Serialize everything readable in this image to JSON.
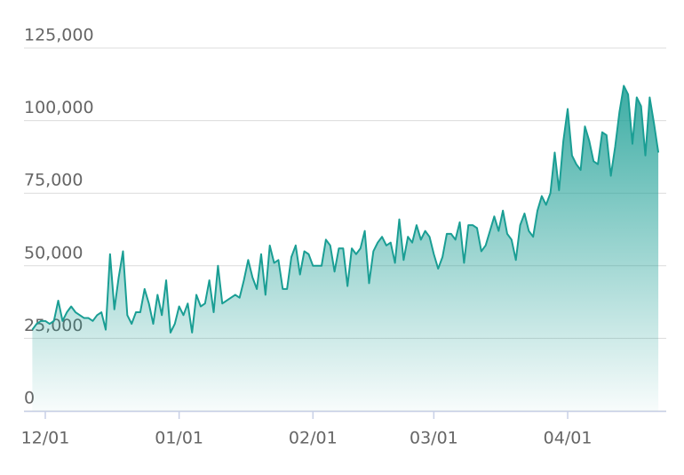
{
  "chart_data": {
    "type": "area",
    "x": [
      "11/28",
      "11/29",
      "11/30",
      "12/01",
      "12/02",
      "12/03",
      "12/04",
      "12/05",
      "12/06",
      "12/07",
      "12/08",
      "12/09",
      "12/10",
      "12/11",
      "12/12",
      "12/13",
      "12/14",
      "12/15",
      "12/16",
      "12/17",
      "12/18",
      "12/19",
      "12/20",
      "12/21",
      "12/22",
      "12/23",
      "12/24",
      "12/25",
      "12/26",
      "12/27",
      "12/28",
      "12/29",
      "12/30",
      "12/31",
      "01/01",
      "01/02",
      "01/03",
      "01/04",
      "01/05",
      "01/06",
      "01/07",
      "01/08",
      "01/09",
      "01/10",
      "01/11",
      "01/12",
      "01/13",
      "01/14",
      "01/15",
      "01/16",
      "01/17",
      "01/18",
      "01/19",
      "01/20",
      "01/21",
      "01/22",
      "01/23",
      "01/24",
      "01/25",
      "01/26",
      "01/27",
      "01/28",
      "01/29",
      "01/30",
      "01/31",
      "02/01",
      "02/02",
      "02/03",
      "02/04",
      "02/05",
      "02/06",
      "02/07",
      "02/08",
      "02/09",
      "02/10",
      "02/11",
      "02/12",
      "02/13",
      "02/14",
      "02/15",
      "02/16",
      "02/17",
      "02/18",
      "02/19",
      "02/20",
      "02/21",
      "02/22",
      "02/23",
      "02/24",
      "02/25",
      "02/26",
      "02/27",
      "02/28",
      "03/01",
      "03/02",
      "03/03",
      "03/04",
      "03/05",
      "03/06",
      "03/07",
      "03/08",
      "03/09",
      "03/10",
      "03/11",
      "03/12",
      "03/13",
      "03/14",
      "03/15",
      "03/16",
      "03/17",
      "03/18",
      "03/19",
      "03/20",
      "03/21",
      "03/22",
      "03/23",
      "03/24",
      "03/25",
      "03/26",
      "03/27",
      "03/28",
      "03/29",
      "03/30",
      "03/31",
      "04/01",
      "04/02",
      "04/03",
      "04/04",
      "04/05",
      "04/06",
      "04/07",
      "04/08",
      "04/09",
      "04/10",
      "04/11",
      "04/12",
      "04/13",
      "04/14",
      "04/15",
      "04/16",
      "04/17",
      "04/18",
      "04/19",
      "04/20",
      "04/21",
      "04/22"
    ],
    "values": [
      28000,
      30000,
      31000,
      31000,
      30000,
      31000,
      38000,
      31000,
      34000,
      36000,
      34000,
      33000,
      32000,
      32000,
      31000,
      33000,
      34000,
      28000,
      54000,
      35000,
      46000,
      55000,
      33000,
      30000,
      34000,
      34000,
      42000,
      37000,
      30000,
      40000,
      33000,
      45000,
      27000,
      30000,
      36000,
      33000,
      37000,
      27000,
      40000,
      36000,
      37000,
      45000,
      34000,
      50000,
      37000,
      38000,
      39000,
      40000,
      39000,
      45000,
      52000,
      46000,
      42000,
      54000,
      40000,
      57000,
      51000,
      52000,
      42000,
      42000,
      53000,
      57000,
      47000,
      55000,
      54000,
      50000,
      50000,
      50000,
      59000,
      57000,
      48000,
      56000,
      56000,
      43000,
      56000,
      54000,
      56000,
      62000,
      44000,
      55000,
      58000,
      60000,
      57000,
      58000,
      51000,
      66000,
      52000,
      60000,
      58000,
      64000,
      59000,
      62000,
      60000,
      54000,
      49000,
      53000,
      61000,
      61000,
      59000,
      65000,
      51000,
      64000,
      64000,
      63000,
      55000,
      57000,
      62000,
      67000,
      62000,
      69000,
      61000,
      59000,
      52000,
      64000,
      68000,
      62000,
      60000,
      69000,
      74000,
      71000,
      75000,
      89000,
      76000,
      93000,
      104000,
      88000,
      85000,
      83000,
      98000,
      93000,
      86000,
      85000,
      96000,
      95000,
      81000,
      91000,
      103000,
      112000,
      109000,
      92000,
      108000,
      105000,
      88000,
      108000,
      99000,
      89000
    ],
    "color": "#1a9e94",
    "xticks": [
      "12/01",
      "01/01",
      "02/01",
      "03/01",
      "04/01"
    ],
    "ylim": [
      0,
      125000
    ],
    "yticks": [
      0,
      {
        "value": 25000,
        "label": "25,000"
      },
      {
        "value": 50000,
        "label": "50,000"
      },
      {
        "value": 75000,
        "label": "75,000"
      },
      {
        "value": 100000,
        "label": "100,000"
      },
      {
        "value": 125000,
        "label": "125,000"
      }
    ],
    "grid": true
  }
}
